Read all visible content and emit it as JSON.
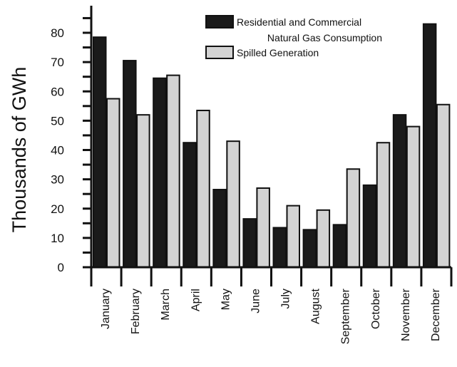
{
  "chart_data": {
    "type": "bar",
    "ylabel": "Thousands of GWh",
    "xlabel": "",
    "ylim": [
      0,
      80
    ],
    "yticks": [
      0,
      10,
      20,
      30,
      40,
      50,
      60,
      70,
      80
    ],
    "grid": false,
    "legend_position": "top-right",
    "categories": [
      "January",
      "February",
      "March",
      "April",
      "May",
      "June",
      "July",
      "August",
      "September",
      "October",
      "November",
      "December"
    ],
    "series": [
      {
        "name": "Residential and Commercial Natural Gas Consumption",
        "legend_lines": [
          "Residential and Commercial",
          "Natural Gas Consumption"
        ],
        "color": "#1a1a1a",
        "values": [
          78.5,
          70.5,
          64.5,
          42.5,
          26.5,
          16.5,
          13.5,
          12.8,
          14.5,
          28,
          52,
          83
        ]
      },
      {
        "name": "Spilled Generation",
        "legend_lines": [
          "Spilled Generation"
        ],
        "color": "#d3d3d3",
        "values": [
          57.5,
          52,
          65.5,
          53.5,
          43,
          27,
          21,
          19.5,
          33.5,
          42.5,
          48,
          55.5
        ]
      }
    ]
  }
}
